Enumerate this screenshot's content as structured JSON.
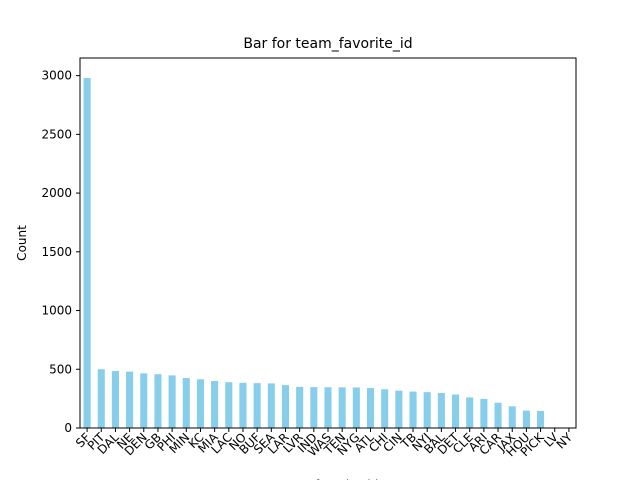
{
  "chart_data": {
    "type": "bar",
    "title": "Bar for team_favorite_id",
    "xlabel": "team_favorite_id",
    "ylabel": "Count",
    "ylim": [
      0,
      3150
    ],
    "yticks": [
      0,
      500,
      1000,
      1500,
      2000,
      2500,
      3000
    ],
    "grid": false,
    "legend": "none",
    "bar_color": "#87CEEB",
    "categories": [
      "SF",
      "PIT",
      "DAL",
      "NE",
      "DEN",
      "GB",
      "PHI",
      "MIN",
      "KC",
      "MIA",
      "LAC",
      "NO",
      "BUF",
      "SEA",
      "LAR",
      "LVR",
      "IND",
      "WAS",
      "TEN",
      "NYG",
      "ATL",
      "CHI",
      "CIN",
      "TB",
      "NYJ",
      "BAL",
      "DET",
      "CLE",
      "ARI",
      "CAR",
      "JAX",
      "HOU",
      "PICK",
      "LV",
      "NY"
    ],
    "values": [
      2980,
      500,
      485,
      480,
      465,
      458,
      448,
      425,
      415,
      400,
      390,
      385,
      382,
      380,
      365,
      350,
      348,
      347,
      346,
      345,
      340,
      330,
      318,
      310,
      305,
      298,
      285,
      260,
      248,
      215,
      185,
      148,
      145,
      0,
      0
    ]
  }
}
